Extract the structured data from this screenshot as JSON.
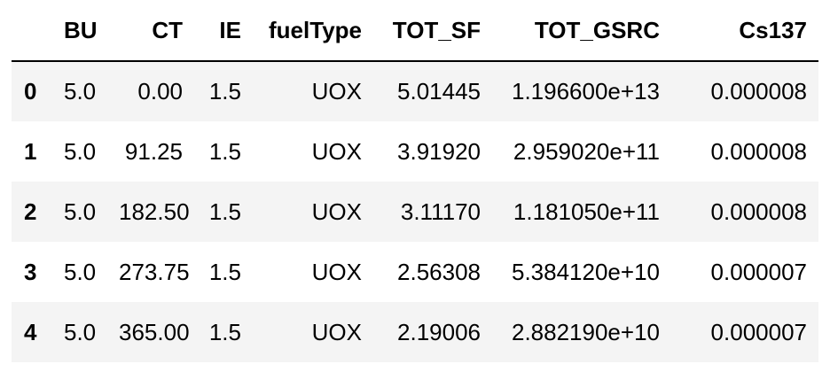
{
  "table": {
    "index_header": "",
    "columns": [
      "BU",
      "CT",
      "IE",
      "fuelType",
      "TOT_SF",
      "TOT_GSRC",
      "Cs137"
    ],
    "rows": [
      {
        "index": "0",
        "cells": [
          "5.0",
          "0.00",
          "1.5",
          "UOX",
          "5.01445",
          "1.196600e+13",
          "0.000008"
        ]
      },
      {
        "index": "1",
        "cells": [
          "5.0",
          "91.25",
          "1.5",
          "UOX",
          "3.91920",
          "2.959020e+11",
          "0.000008"
        ]
      },
      {
        "index": "2",
        "cells": [
          "5.0",
          "182.50",
          "1.5",
          "UOX",
          "3.11170",
          "1.181050e+11",
          "0.000008"
        ]
      },
      {
        "index": "3",
        "cells": [
          "5.0",
          "273.75",
          "1.5",
          "UOX",
          "2.56308",
          "5.384120e+10",
          "0.000007"
        ]
      },
      {
        "index": "4",
        "cells": [
          "5.0",
          "365.00",
          "1.5",
          "UOX",
          "2.19006",
          "2.882190e+10",
          "0.000007"
        ]
      }
    ]
  }
}
